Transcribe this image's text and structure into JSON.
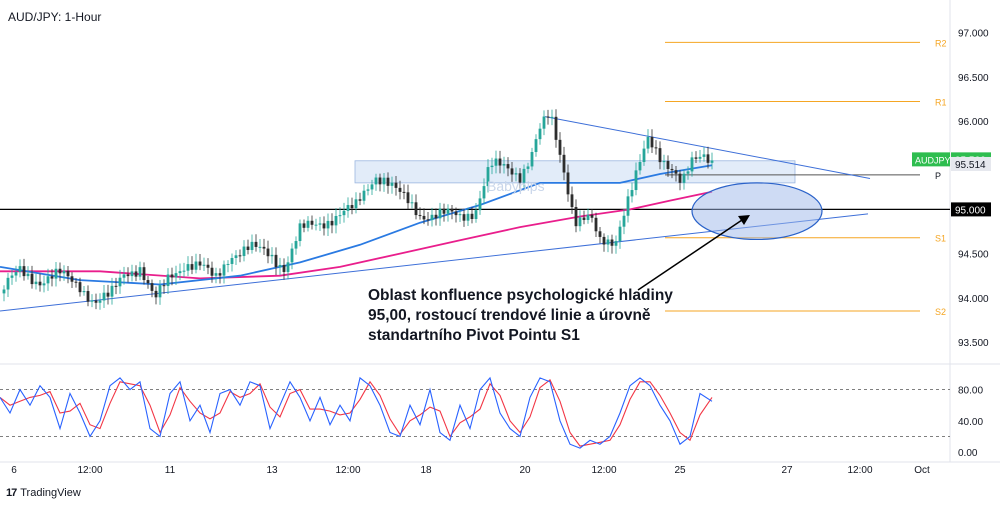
{
  "symbol_title": "AUD/JPY: 1-Hour",
  "watermark": "Babypips",
  "brand": "TradingView",
  "annotation": "Oblast konfluence psychologické hladiny 95,00, rostoucí trendové linie a úrovně standartního Pivot Pointu S1",
  "colors": {
    "up": "#26a69a",
    "down": "#2d2d2d",
    "sma_fast": "#2a7ae2",
    "sma_slow": "#e91e8c",
    "pivot_lines": "#f5a623",
    "trendline": "#3d6fd8",
    "stoch_k": "#2962ff",
    "stoch_d": "#f23645",
    "price_badge": "#2ebd4f"
  },
  "chart_data": {
    "type": "candlestick",
    "price_axis": {
      "ticks": [
        "97.000",
        "96.500",
        "96.000",
        "95.500",
        "95.000",
        "94.500",
        "94.000",
        "93.500"
      ],
      "range": [
        93.35,
        97.2
      ]
    },
    "time_axis_labels": [
      "6",
      "12:00",
      "11",
      "13",
      "12:00",
      "18",
      "20",
      "12:00",
      "25",
      "27",
      "12:00",
      "Oct"
    ],
    "current_price": {
      "label": "AUDJPY",
      "value": "95.566"
    },
    "sma_value_label": "95.514",
    "level_label": "95.000",
    "pivot_levels": [
      {
        "name": "R2",
        "value": 96.89
      },
      {
        "name": "R1",
        "value": 96.22
      },
      {
        "name": "P",
        "value": 95.39
      },
      {
        "name": "S1",
        "value": 94.68
      },
      {
        "name": "S2",
        "value": 93.85
      }
    ],
    "horizontal_level": 95.0,
    "price_path": [
      [
        0,
        94.05
      ],
      [
        20,
        94.3
      ],
      [
        40,
        94.2
      ],
      [
        60,
        94.25
      ],
      [
        80,
        94.15
      ],
      [
        95,
        93.95
      ],
      [
        110,
        94.0
      ],
      [
        125,
        94.3
      ],
      [
        140,
        94.35
      ],
      [
        155,
        93.95
      ],
      [
        170,
        94.25
      ],
      [
        185,
        94.4
      ],
      [
        200,
        94.35
      ],
      [
        215,
        94.2
      ],
      [
        230,
        94.5
      ],
      [
        250,
        94.55
      ],
      [
        270,
        94.5
      ],
      [
        285,
        94.35
      ],
      [
        300,
        94.75
      ],
      [
        320,
        94.85
      ],
      [
        340,
        94.95
      ],
      [
        355,
        95.0
      ],
      [
        365,
        95.2
      ],
      [
        375,
        95.4
      ],
      [
        385,
        95.35
      ],
      [
        400,
        95.15
      ],
      [
        420,
        94.95
      ],
      [
        440,
        94.95
      ],
      [
        460,
        94.9
      ],
      [
        475,
        95.0
      ],
      [
        490,
        95.5
      ],
      [
        505,
        95.45
      ],
      [
        520,
        95.4
      ],
      [
        530,
        95.6
      ],
      [
        540,
        95.9
      ],
      [
        550,
        96.05
      ],
      [
        558,
        95.7
      ],
      [
        565,
        95.4
      ],
      [
        575,
        94.9
      ],
      [
        590,
        94.9
      ],
      [
        600,
        94.6
      ],
      [
        615,
        94.65
      ],
      [
        625,
        95.05
      ],
      [
        635,
        95.35
      ],
      [
        648,
        95.75
      ],
      [
        660,
        95.6
      ],
      [
        672,
        95.5
      ],
      [
        682,
        95.3
      ],
      [
        692,
        95.5
      ],
      [
        705,
        95.6
      ],
      [
        712,
        95.56
      ]
    ],
    "sma_fast_path": [
      [
        0,
        94.35
      ],
      [
        80,
        94.2
      ],
      [
        160,
        94.15
      ],
      [
        240,
        94.25
      ],
      [
        300,
        94.4
      ],
      [
        360,
        94.6
      ],
      [
        420,
        94.85
      ],
      [
        480,
        95.05
      ],
      [
        540,
        95.3
      ],
      [
        580,
        95.3
      ],
      [
        620,
        95.3
      ],
      [
        660,
        95.4
      ],
      [
        712,
        95.5
      ]
    ],
    "sma_slow_path": [
      [
        0,
        94.3
      ],
      [
        100,
        94.3
      ],
      [
        200,
        94.22
      ],
      [
        280,
        94.25
      ],
      [
        340,
        94.35
      ],
      [
        400,
        94.5
      ],
      [
        460,
        94.65
      ],
      [
        520,
        94.8
      ],
      [
        580,
        94.92
      ],
      [
        630,
        95.0
      ],
      [
        670,
        95.1
      ],
      [
        712,
        95.2
      ]
    ],
    "trendline_rising": {
      "start": [
        0,
        93.85
      ],
      "end": [
        868,
        94.95
      ]
    },
    "trendline_falling": {
      "start": [
        545,
        96.05
      ],
      "end": [
        870,
        95.35
      ]
    },
    "confluence_zone": {
      "center_x": 757,
      "center_price": 94.98,
      "rx": 65,
      "ry_price": 0.32
    },
    "resistance_box": {
      "x1": 355,
      "x2": 795,
      "top": 95.55,
      "bottom": 95.3
    },
    "stochastic": {
      "ticks": [
        "80.00",
        "40.00",
        "0.00"
      ],
      "levels": [
        80,
        20
      ],
      "k_path": [
        [
          0,
          70
        ],
        [
          10,
          50
        ],
        [
          20,
          80
        ],
        [
          30,
          60
        ],
        [
          40,
          85
        ],
        [
          50,
          70
        ],
        [
          60,
          30
        ],
        [
          70,
          75
        ],
        [
          80,
          50
        ],
        [
          90,
          20
        ],
        [
          100,
          40
        ],
        [
          110,
          85
        ],
        [
          120,
          95
        ],
        [
          130,
          80
        ],
        [
          140,
          90
        ],
        [
          150,
          30
        ],
        [
          160,
          20
        ],
        [
          170,
          75
        ],
        [
          180,
          90
        ],
        [
          190,
          40
        ],
        [
          200,
          60
        ],
        [
          210,
          25
        ],
        [
          220,
          75
        ],
        [
          230,
          80
        ],
        [
          240,
          60
        ],
        [
          250,
          90
        ],
        [
          260,
          85
        ],
        [
          270,
          30
        ],
        [
          280,
          60
        ],
        [
          290,
          90
        ],
        [
          300,
          70
        ],
        [
          310,
          40
        ],
        [
          320,
          70
        ],
        [
          330,
          35
        ],
        [
          340,
          60
        ],
        [
          350,
          40
        ],
        [
          360,
          95
        ],
        [
          370,
          85
        ],
        [
          380,
          60
        ],
        [
          390,
          25
        ],
        [
          400,
          20
        ],
        [
          410,
          60
        ],
        [
          420,
          35
        ],
        [
          430,
          80
        ],
        [
          440,
          25
        ],
        [
          450,
          15
        ],
        [
          460,
          60
        ],
        [
          470,
          30
        ],
        [
          480,
          80
        ],
        [
          490,
          95
        ],
        [
          500,
          50
        ],
        [
          510,
          30
        ],
        [
          520,
          20
        ],
        [
          530,
          70
        ],
        [
          540,
          95
        ],
        [
          550,
          90
        ],
        [
          560,
          40
        ],
        [
          570,
          10
        ],
        [
          580,
          5
        ],
        [
          590,
          15
        ],
        [
          600,
          10
        ],
        [
          610,
          20
        ],
        [
          620,
          50
        ],
        [
          630,
          85
        ],
        [
          640,
          95
        ],
        [
          650,
          85
        ],
        [
          660,
          60
        ],
        [
          670,
          40
        ],
        [
          680,
          10
        ],
        [
          690,
          20
        ],
        [
          700,
          75
        ],
        [
          712,
          65
        ]
      ]
    }
  }
}
